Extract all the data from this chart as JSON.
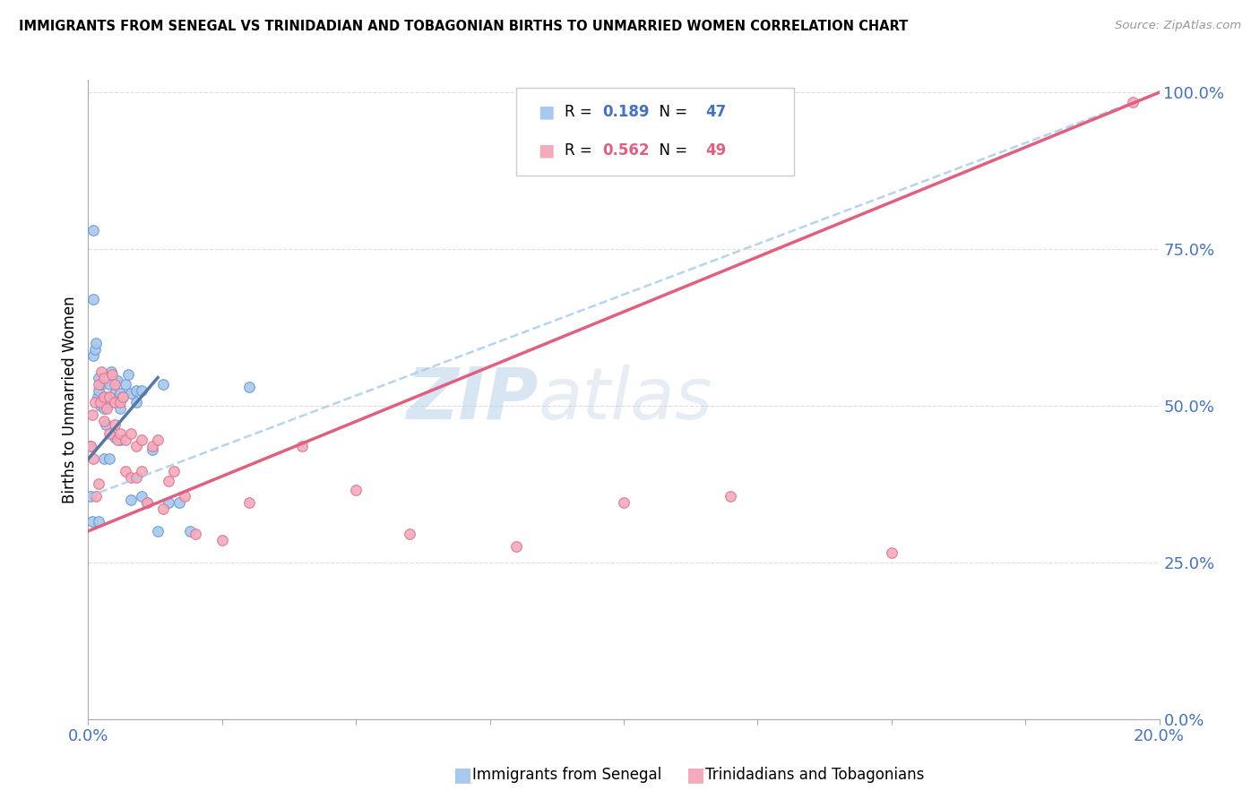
{
  "title": "IMMIGRANTS FROM SENEGAL VS TRINIDADIAN AND TOBAGONIAN BIRTHS TO UNMARRIED WOMEN CORRELATION CHART",
  "source": "Source: ZipAtlas.com",
  "ylabel": "Births to Unmarried Women",
  "legend_blue_R": "0.189",
  "legend_blue_N": "47",
  "legend_pink_R": "0.562",
  "legend_pink_N": "49",
  "legend_label_blue": "Immigrants from Senegal",
  "legend_label_pink": "Trinidadians and Tobagonians",
  "watermark_zip": "ZIP",
  "watermark_atlas": "atlas",
  "blue_color": "#A8C8F0",
  "pink_color": "#F4AABB",
  "blue_edge_color": "#6699CC",
  "pink_edge_color": "#E07090",
  "blue_line_color": "#5577AA",
  "pink_line_color": "#E06080",
  "axis_color": "#4472C4",
  "grid_color": "#DDDDDD",
  "xmin": 0.0,
  "xmax": 0.2,
  "ymin": 0.0,
  "ymax": 1.02,
  "blue_x": [
    0.0005,
    0.001,
    0.001,
    0.001,
    0.0012,
    0.0015,
    0.0018,
    0.002,
    0.002,
    0.0022,
    0.0025,
    0.003,
    0.003,
    0.0032,
    0.0035,
    0.004,
    0.004,
    0.0042,
    0.005,
    0.005,
    0.0055,
    0.006,
    0.006,
    0.0065,
    0.007,
    0.0075,
    0.008,
    0.009,
    0.009,
    0.01,
    0.011,
    0.012,
    0.013,
    0.014,
    0.015,
    0.017,
    0.019,
    0.0005,
    0.0008,
    0.002,
    0.003,
    0.004,
    0.005,
    0.006,
    0.008,
    0.01,
    0.03
  ],
  "blue_y": [
    0.355,
    0.67,
    0.78,
    0.58,
    0.59,
    0.6,
    0.515,
    0.525,
    0.545,
    0.5,
    0.535,
    0.515,
    0.495,
    0.47,
    0.505,
    0.515,
    0.535,
    0.555,
    0.52,
    0.505,
    0.54,
    0.52,
    0.495,
    0.515,
    0.535,
    0.55,
    0.52,
    0.525,
    0.505,
    0.525,
    0.345,
    0.43,
    0.3,
    0.535,
    0.345,
    0.345,
    0.3,
    0.435,
    0.315,
    0.315,
    0.415,
    0.415,
    0.45,
    0.445,
    0.35,
    0.355,
    0.53
  ],
  "pink_x": [
    0.0005,
    0.0008,
    0.001,
    0.0012,
    0.0015,
    0.002,
    0.002,
    0.0022,
    0.0025,
    0.003,
    0.003,
    0.003,
    0.0035,
    0.004,
    0.004,
    0.0045,
    0.005,
    0.005,
    0.005,
    0.0055,
    0.006,
    0.006,
    0.0065,
    0.007,
    0.007,
    0.008,
    0.008,
    0.009,
    0.009,
    0.01,
    0.01,
    0.011,
    0.012,
    0.013,
    0.014,
    0.015,
    0.016,
    0.018,
    0.02,
    0.025,
    0.03,
    0.04,
    0.05,
    0.06,
    0.08,
    0.1,
    0.12,
    0.15,
    0.195
  ],
  "pink_y": [
    0.435,
    0.485,
    0.415,
    0.505,
    0.355,
    0.535,
    0.375,
    0.505,
    0.555,
    0.475,
    0.515,
    0.545,
    0.495,
    0.515,
    0.455,
    0.55,
    0.535,
    0.505,
    0.47,
    0.445,
    0.455,
    0.505,
    0.515,
    0.395,
    0.445,
    0.455,
    0.385,
    0.385,
    0.435,
    0.395,
    0.445,
    0.345,
    0.435,
    0.445,
    0.335,
    0.38,
    0.395,
    0.355,
    0.295,
    0.285,
    0.345,
    0.435,
    0.365,
    0.295,
    0.275,
    0.345,
    0.355,
    0.265,
    0.985
  ],
  "blue_trendline_x": [
    0.0,
    0.2
  ],
  "blue_trendline_y": [
    0.355,
    1.0
  ],
  "pink_trendline_x": [
    0.0,
    0.2
  ],
  "pink_trendline_y": [
    0.3,
    1.0
  ],
  "blue_shortline_x": [
    0.0,
    0.013
  ],
  "blue_shortline_y": [
    0.415,
    0.545
  ]
}
